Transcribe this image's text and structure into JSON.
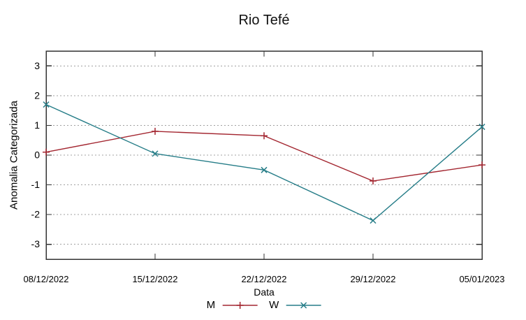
{
  "chart_data": {
    "type": "line",
    "title": "Rio Tefé",
    "xlabel": "Data",
    "ylabel": "Anomalia Categorizada",
    "x_labels": [
      "08/12/2022",
      "15/12/2022",
      "22/12/2022",
      "29/12/2022",
      "05/01/2023"
    ],
    "yticks": [
      -3,
      -2,
      -1,
      0,
      1,
      2,
      3
    ],
    "ylim": [
      -3.5,
      3.5
    ],
    "grid": "horizontal-dotted-gray",
    "legend_position": "bottom-center",
    "background": "#ffffff",
    "series": [
      {
        "name": "M",
        "color": "#a32630",
        "marker": "plus",
        "values": [
          0.1,
          0.8,
          0.65,
          -0.87,
          -0.33
        ]
      },
      {
        "name": "W",
        "color": "#267d88",
        "marker": "cross",
        "values": [
          1.7,
          0.05,
          -0.5,
          -2.2,
          0.95
        ]
      }
    ]
  }
}
